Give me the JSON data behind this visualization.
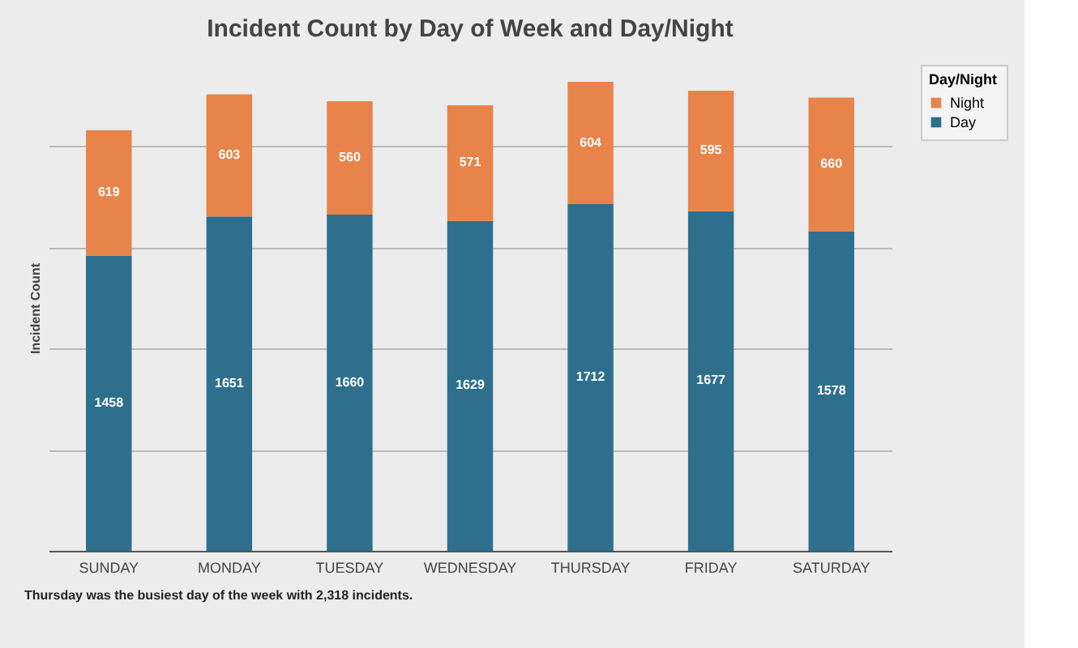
{
  "chart_data": {
    "type": "bar",
    "title": "Incident Count by Day of Week and Day/Night",
    "ylabel": "Incident Count",
    "legend_title": "Day/Night",
    "categories": [
      "SUNDAY",
      "MONDAY",
      "TUESDAY",
      "WEDNESDAY",
      "THURSDAY",
      "FRIDAY",
      "SATURDAY"
    ],
    "series": [
      {
        "name": "Day",
        "color": "#2e6f8e",
        "values": [
          1458,
          1651,
          1660,
          1629,
          1712,
          1677,
          1578
        ]
      },
      {
        "name": "Night",
        "color": "#e8834a",
        "values": [
          619,
          603,
          560,
          571,
          604,
          595,
          660
        ]
      }
    ],
    "stacked": true,
    "data_labels": true,
    "yticks": [
      {
        "value": 0,
        "label": null
      },
      {
        "value": 500,
        "label": null
      },
      {
        "value": 1000,
        "label": null
      },
      {
        "value": 1500,
        "label": null
      },
      {
        "value": 2000,
        "label": null
      }
    ],
    "tick_labels": "x",
    "grid": "y",
    "legend": "right",
    "annotations": [
      "Thursday was the busiest day of the week with 2,318 incidents."
    ]
  }
}
